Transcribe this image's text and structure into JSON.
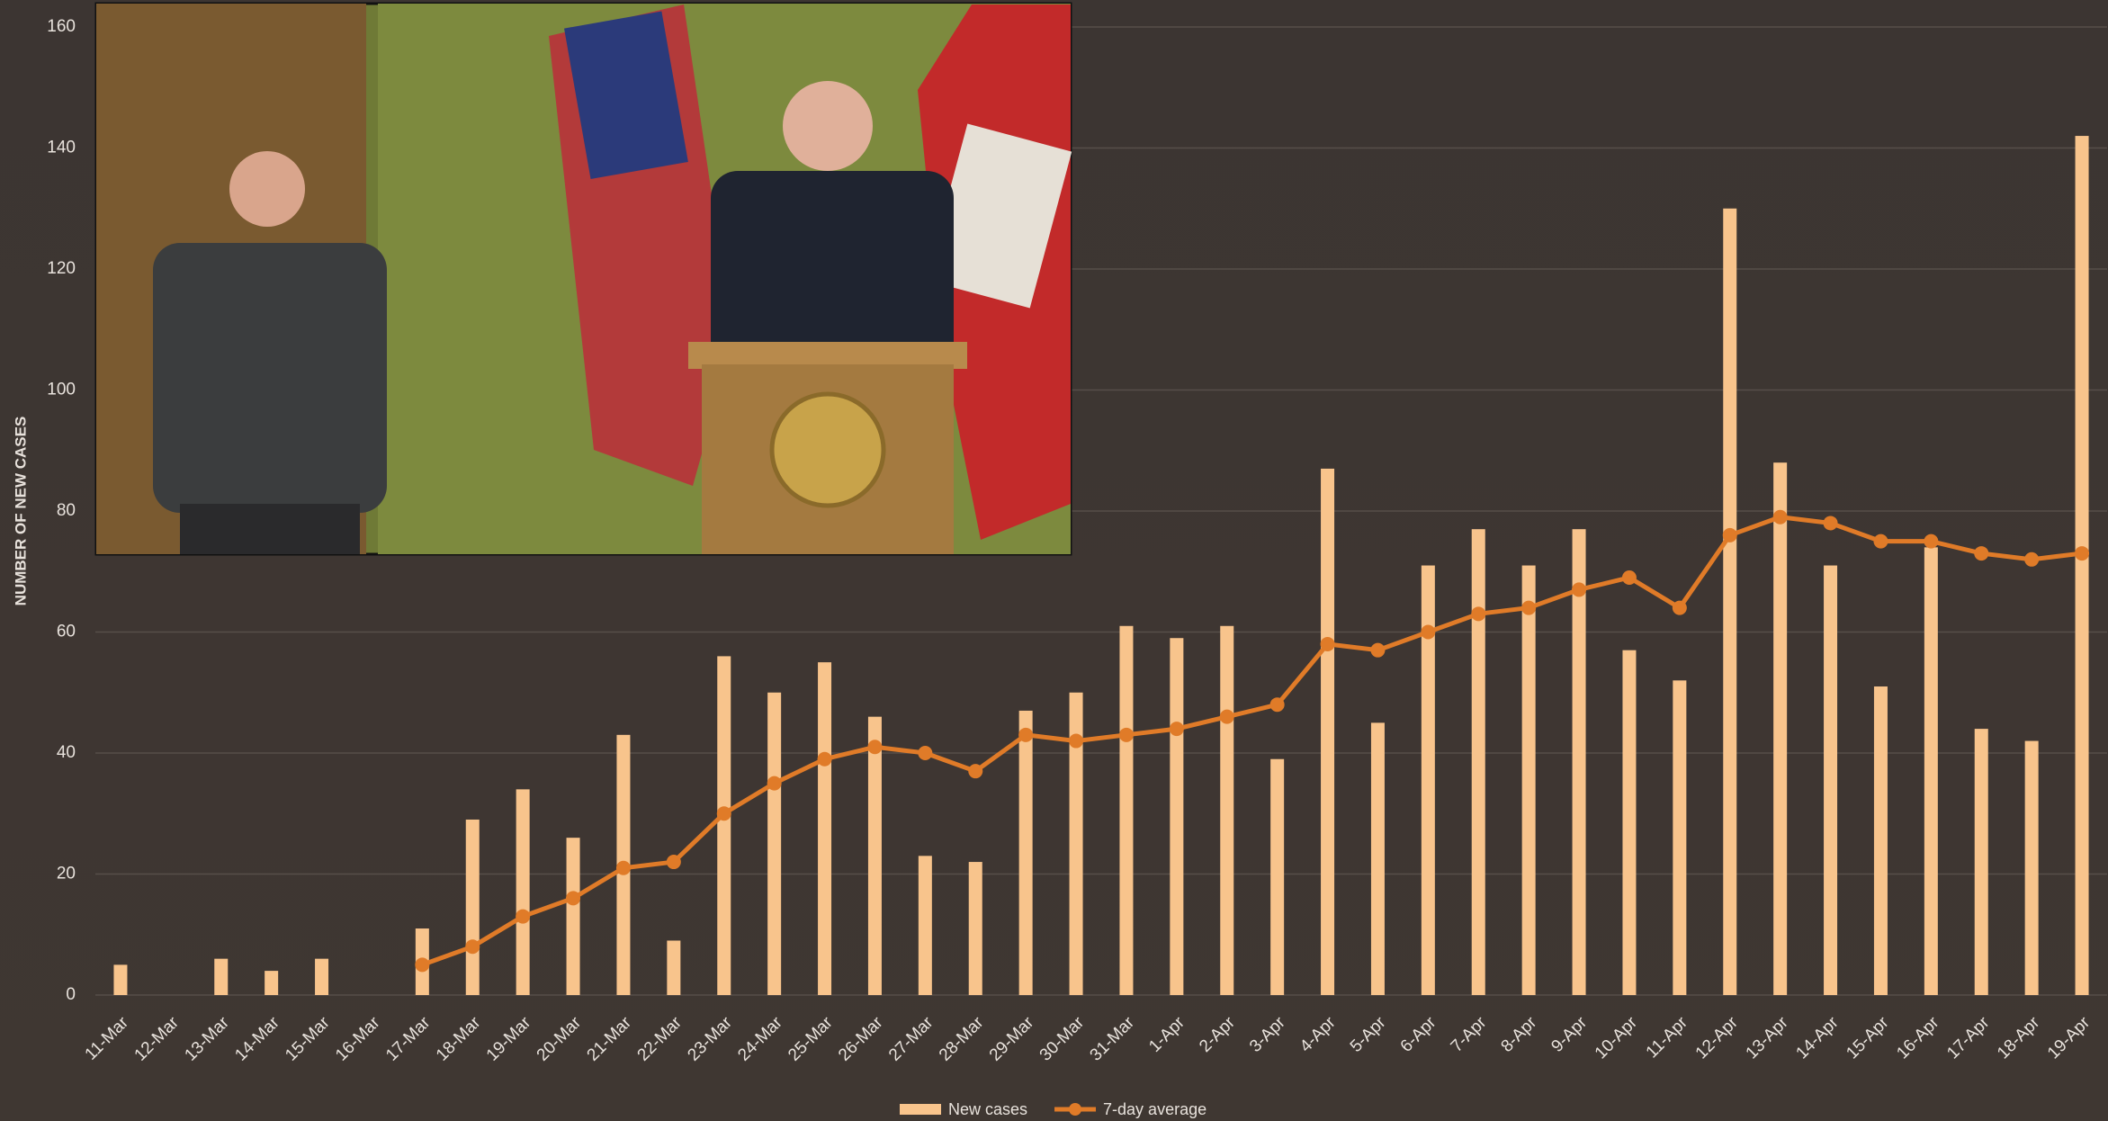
{
  "chart_data": {
    "type": "bar_line",
    "y_label": "NUMBER OF NEW CASES",
    "categories": [
      "11-Mar",
      "12-Mar",
      "13-Mar",
      "14-Mar",
      "15-Mar",
      "16-Mar",
      "17-Mar",
      "18-Mar",
      "19-Mar",
      "20-Mar",
      "21-Mar",
      "22-Mar",
      "23-Mar",
      "24-Mar",
      "25-Mar",
      "26-Mar",
      "27-Mar",
      "28-Mar",
      "29-Mar",
      "30-Mar",
      "31-Mar",
      "1-Apr",
      "2-Apr",
      "3-Apr",
      "4-Apr",
      "5-Apr",
      "6-Apr",
      "7-Apr",
      "8-Apr",
      "9-Apr",
      "10-Apr",
      "11-Apr",
      "12-Apr",
      "13-Apr",
      "14-Apr",
      "15-Apr",
      "16-Apr",
      "17-Apr",
      "18-Apr",
      "19-Apr"
    ],
    "series": [
      {
        "name": "New cases",
        "type": "bar",
        "color": "#f8c48c",
        "values": [
          5,
          0,
          6,
          4,
          6,
          0,
          11,
          29,
          34,
          26,
          43,
          9,
          56,
          50,
          55,
          46,
          23,
          22,
          47,
          50,
          61,
          59,
          61,
          39,
          87,
          45,
          71,
          77,
          71,
          77,
          57,
          52,
          130,
          88,
          71,
          51,
          74,
          44,
          42,
          142
        ]
      },
      {
        "name": "7-day average",
        "type": "line",
        "color": "#e07b28",
        "values": [
          null,
          null,
          null,
          null,
          null,
          null,
          5,
          8,
          13,
          16,
          21,
          22,
          30,
          35,
          39,
          41,
          40,
          37,
          43,
          42,
          43,
          44,
          46,
          48,
          58,
          57,
          60,
          63,
          64,
          67,
          69,
          64,
          76,
          79,
          78,
          75,
          75,
          73,
          72,
          73
        ]
      }
    ],
    "ylim": [
      0,
      160
    ],
    "yticks": [
      0,
      20,
      40,
      60,
      80,
      100,
      120,
      140,
      160
    ],
    "grid": true
  }
}
